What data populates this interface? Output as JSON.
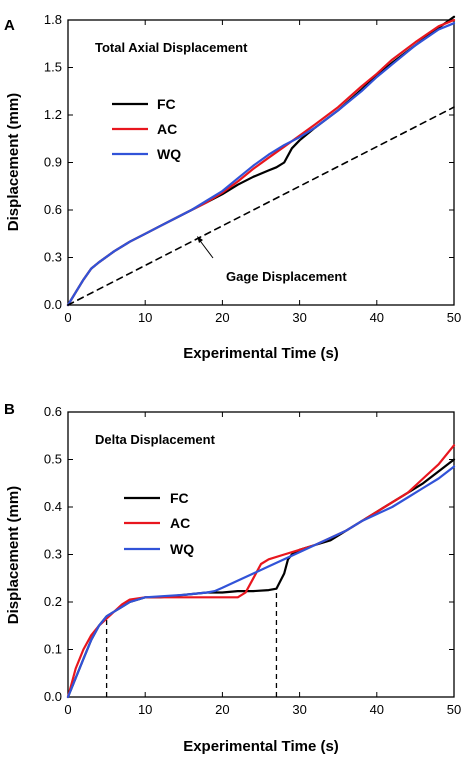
{
  "chart_data": [
    {
      "type": "line",
      "panel_label": "A",
      "annotation": "Total Axial Displacement",
      "xlabel": "Experimental Time (s)",
      "ylabel": "Displacement (mm)",
      "xlim": [
        0,
        50
      ],
      "ylim": [
        0,
        1.8
      ],
      "xticks": [
        "0",
        "10",
        "20",
        "30",
        "40",
        "50"
      ],
      "yticks": [
        "0.0",
        "0.3",
        "0.6",
        "0.9",
        "1.2",
        "1.5",
        "1.8"
      ],
      "xtick_values": [
        0,
        10,
        20,
        30,
        40,
        50
      ],
      "ytick_values": [
        0,
        0.3,
        0.6,
        0.9,
        1.2,
        1.5,
        1.8
      ],
      "legend": {
        "placement": "upper-left"
      },
      "series": [
        {
          "name": "FC",
          "color": "#000000",
          "dash": "solid",
          "x": [
            0,
            1,
            2,
            3,
            4,
            6,
            8,
            10,
            12,
            14,
            16,
            18,
            20,
            22,
            24,
            26,
            27,
            28,
            29,
            30,
            32,
            35,
            38,
            40,
            42,
            45,
            48,
            50
          ],
          "y": [
            0,
            0.08,
            0.16,
            0.23,
            0.27,
            0.34,
            0.4,
            0.45,
            0.5,
            0.55,
            0.6,
            0.65,
            0.7,
            0.76,
            0.81,
            0.85,
            0.87,
            0.9,
            0.99,
            1.04,
            1.12,
            1.23,
            1.36,
            1.45,
            1.53,
            1.64,
            1.75,
            1.82
          ]
        },
        {
          "name": "AC",
          "color": "#e8161e",
          "dash": "solid",
          "x": [
            0,
            1,
            2,
            3,
            4,
            6,
            8,
            10,
            12,
            14,
            16,
            18,
            20,
            22,
            24,
            26,
            28,
            30,
            32,
            35,
            38,
            40,
            42,
            45,
            48,
            50
          ],
          "y": [
            0,
            0.08,
            0.16,
            0.23,
            0.27,
            0.34,
            0.4,
            0.45,
            0.5,
            0.55,
            0.6,
            0.65,
            0.71,
            0.78,
            0.86,
            0.93,
            1.0,
            1.07,
            1.14,
            1.25,
            1.38,
            1.46,
            1.55,
            1.66,
            1.76,
            1.8
          ]
        },
        {
          "name": "WQ",
          "color": "#3153d8",
          "dash": "solid",
          "x": [
            0,
            1,
            2,
            3,
            4,
            6,
            8,
            10,
            12,
            14,
            16,
            18,
            20,
            22,
            24,
            26,
            28,
            30,
            32,
            35,
            38,
            40,
            42,
            45,
            48,
            50
          ],
          "y": [
            0,
            0.08,
            0.16,
            0.23,
            0.27,
            0.34,
            0.4,
            0.45,
            0.5,
            0.55,
            0.6,
            0.66,
            0.72,
            0.8,
            0.88,
            0.95,
            1.01,
            1.06,
            1.12,
            1.23,
            1.35,
            1.44,
            1.52,
            1.64,
            1.74,
            1.78
          ]
        },
        {
          "name": "Gage Displacement",
          "color": "#000000",
          "dash": "dashed",
          "x": [
            0,
            50
          ],
          "y": [
            0,
            1.25
          ]
        }
      ],
      "annotations": [
        {
          "text": "Gage Displacement",
          "arrow_from": [
            21.5,
            0.24
          ],
          "arrow_to": [
            17,
            0.39
          ]
        }
      ]
    },
    {
      "type": "line",
      "panel_label": "B",
      "annotation": "Delta Displacement",
      "xlabel": "Experimental Time (s)",
      "ylabel": "Displacement (mm)",
      "xlim": [
        0,
        50
      ],
      "ylim": [
        0,
        0.6
      ],
      "xticks": [
        "0",
        "10",
        "20",
        "30",
        "40",
        "50"
      ],
      "yticks": [
        "0.0",
        "0.1",
        "0.2",
        "0.3",
        "0.4",
        "0.5",
        "0.6"
      ],
      "xtick_values": [
        0,
        10,
        20,
        30,
        40,
        50
      ],
      "ytick_values": [
        0,
        0.1,
        0.2,
        0.3,
        0.4,
        0.5,
        0.6
      ],
      "legend": {
        "placement": "center"
      },
      "series": [
        {
          "name": "FC",
          "color": "#000000",
          "dash": "solid",
          "x": [
            0,
            1,
            2,
            3,
            4,
            5,
            6,
            7,
            8,
            10,
            12,
            15,
            18,
            20,
            22,
            24,
            26,
            27,
            28,
            28.5,
            29,
            30,
            32,
            34,
            36,
            38,
            40,
            42,
            44,
            46,
            48,
            50
          ],
          "y": [
            0,
            0.04,
            0.08,
            0.12,
            0.15,
            0.17,
            0.18,
            0.19,
            0.2,
            0.21,
            0.21,
            0.215,
            0.22,
            0.22,
            0.223,
            0.223,
            0.225,
            0.228,
            0.26,
            0.29,
            0.3,
            0.31,
            0.32,
            0.33,
            0.35,
            0.37,
            0.39,
            0.41,
            0.43,
            0.45,
            0.475,
            0.5
          ]
        },
        {
          "name": "AC",
          "color": "#e8161e",
          "dash": "solid",
          "x": [
            0,
            1,
            2,
            3,
            4,
            5,
            6,
            7,
            8,
            10,
            12,
            15,
            18,
            20,
            22,
            23,
            24,
            25,
            26,
            28,
            30,
            32,
            34,
            36,
            38,
            40,
            42,
            44,
            46,
            48,
            50
          ],
          "y": [
            0,
            0.06,
            0.1,
            0.13,
            0.15,
            0.165,
            0.18,
            0.195,
            0.205,
            0.21,
            0.21,
            0.21,
            0.21,
            0.21,
            0.21,
            0.22,
            0.25,
            0.28,
            0.29,
            0.3,
            0.31,
            0.32,
            0.335,
            0.35,
            0.37,
            0.39,
            0.41,
            0.43,
            0.46,
            0.49,
            0.53
          ]
        },
        {
          "name": "WQ",
          "color": "#3153d8",
          "dash": "solid",
          "x": [
            0,
            1,
            2,
            3,
            4,
            5,
            6,
            7,
            8,
            10,
            12,
            15,
            18,
            19,
            20,
            22,
            24,
            26,
            28,
            30,
            32,
            34,
            36,
            38,
            40,
            42,
            44,
            46,
            48,
            50
          ],
          "y": [
            0,
            0.04,
            0.08,
            0.12,
            0.15,
            0.17,
            0.18,
            0.19,
            0.2,
            0.21,
            0.212,
            0.215,
            0.22,
            0.223,
            0.23,
            0.245,
            0.26,
            0.275,
            0.29,
            0.305,
            0.32,
            0.335,
            0.35,
            0.37,
            0.385,
            0.4,
            0.42,
            0.44,
            0.46,
            0.485
          ]
        }
      ],
      "reference_lines": [
        {
          "x": 5,
          "y_top": 0.17,
          "dash": "dashed",
          "color": "#000000"
        },
        {
          "x": 27,
          "y_top": 0.228,
          "dash": "dashed",
          "color": "#000000"
        }
      ]
    }
  ]
}
